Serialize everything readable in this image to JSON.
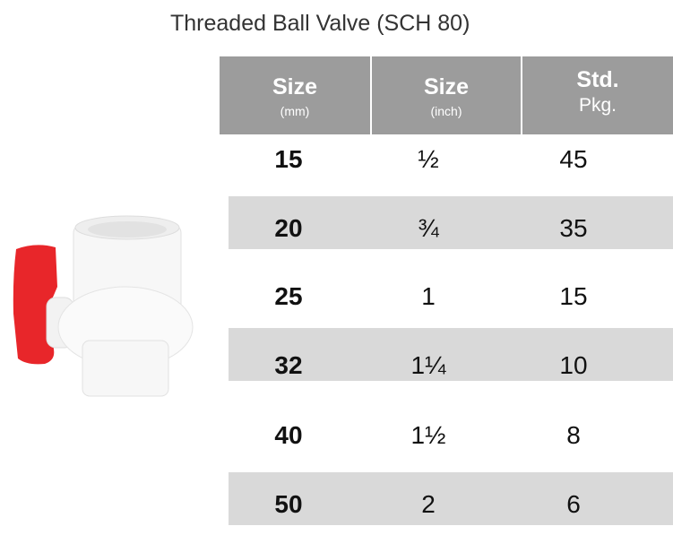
{
  "title": "Threaded Ball Valve (SCH 80)",
  "columns": [
    {
      "label": "Size",
      "sub": "(mm)"
    },
    {
      "label": "Size",
      "sub": "(inch)"
    },
    {
      "label": "Std.",
      "sub": "Pkg."
    }
  ],
  "rows": [
    {
      "mm": "15",
      "inch": "½",
      "pkg": "45"
    },
    {
      "mm": "20",
      "inch": "¾",
      "pkg": "35"
    },
    {
      "mm": "25",
      "inch": "1",
      "pkg": "15"
    },
    {
      "mm": "32",
      "inch": "1¼",
      "pkg": "10"
    },
    {
      "mm": "40",
      "inch": "1½",
      "pkg": "8"
    },
    {
      "mm": "50",
      "inch": "2",
      "pkg": "6"
    }
  ],
  "colors": {
    "header": "#9c9c9c",
    "stripe": "#d9d9d9",
    "handle": "#e8262a"
  }
}
